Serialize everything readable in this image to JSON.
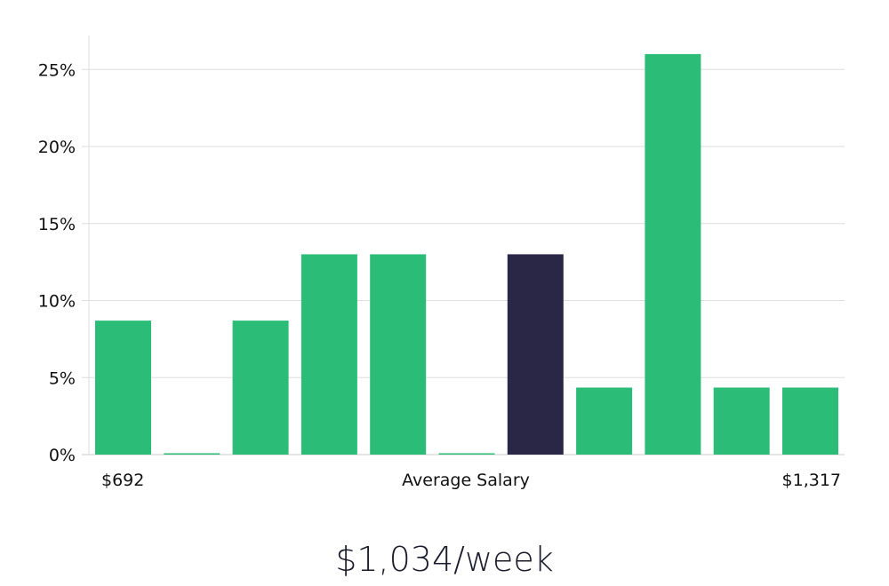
{
  "chart_data": {
    "type": "bar",
    "xlabel": "Average Salary",
    "x_range_labels": {
      "min": "$692",
      "max": "$1,317"
    },
    "yticks": [
      "0%",
      "5%",
      "10%",
      "15%",
      "20%",
      "25%"
    ],
    "ylim": [
      0,
      27
    ],
    "grid": true,
    "values": [
      8.7,
      0.0,
      8.7,
      13.0,
      13.0,
      0.0,
      13.0,
      4.35,
      26.0,
      4.35,
      4.35
    ],
    "highlight_index": 6,
    "colors": {
      "bar": "#2bbd77",
      "highlight": "#2a2746",
      "grid": "#dddddd",
      "axis": "#cccccc"
    }
  },
  "headline": "$1,034/week"
}
